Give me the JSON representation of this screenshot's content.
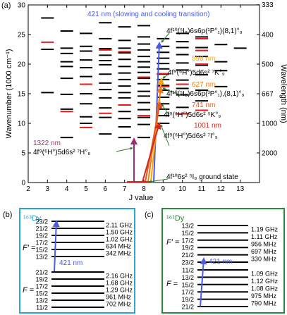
{
  "colors": {
    "axis": "#000000",
    "level": "#000000",
    "level_red": "#e8191a",
    "c421": "#4b5be8",
    "c598": "#f5a800",
    "c627": "#ee7d12",
    "c741": "#e8541d",
    "c1001": "#d42a24",
    "c1322": "#9b2f6e",
    "c_green": "#2b7a2d",
    "box_b": "#29a6d6",
    "box_c": "#2b8a3a"
  },
  "panel_a": {
    "label": "(a)",
    "xlabel": "J value",
    "ylabel_left": "Wavenumber (1000 cm⁻¹)",
    "ylabel_right": "Wavelength (nm)",
    "xticks": [
      "2",
      "3",
      "4",
      "5",
      "6",
      "7",
      "8",
      "9",
      "10",
      "11",
      "12",
      "13"
    ],
    "yticks": [
      "0",
      "5",
      "10",
      "15",
      "20",
      "25",
      "30"
    ],
    "right_ticks": [
      "333",
      "400",
      "500",
      "667",
      "1000",
      "2000"
    ],
    "labels": {
      "t421": "421 nm (slowing and cooling transition)",
      "t598": "598 nm",
      "t627": "627 nm",
      "t741": "741 nm",
      "t1001": "1001 nm",
      "t1322": "1322 nm",
      "cfg_421": "4f¹⁰(⁵I₈)6s6p(¹P°₁)(8,1)°₉",
      "cfg_598": "4f⁹(⁶H°)5d6s² ⁷K°₉",
      "cfg_627": "4f¹⁰(⁵I₈)6s6p(³P°₁),(8,1)°₉",
      "cfg_741": "4f⁹(⁶H°)5d6s² ⁵K°₉",
      "cfg_1001": "4f⁹(⁶H°)5d6s² ⁷I°₉",
      "cfg_1322": "4f⁹(⁶H°)5d6s² ⁷H°₈",
      "cfg_ground": "4f¹⁰6s² ⁵I₈ ground state"
    }
  },
  "panel_b": {
    "label": "(b)",
    "isotope": "¹⁶³Dy",
    "fprime_label": "F′ =",
    "f_label": "F =",
    "transition": "421 nm",
    "upper_F": [
      "23/2",
      "21/2",
      "19/2",
      "17/2",
      "15/2",
      "13/2"
    ],
    "upper_gaps": [
      "2.11 GHz",
      "1.50 GHz",
      "1.02 GHz",
      "634 MHz",
      "342 MHz"
    ],
    "lower_F": [
      "21/2",
      "19/2",
      "17/2",
      "15/2",
      "13/2",
      "11/2"
    ],
    "lower_gaps": [
      "2.16 GHz",
      "1.68 GHz",
      "1.29 GHz",
      "961 MHz",
      "702 MHz"
    ]
  },
  "panel_c": {
    "label": "(c)",
    "isotope": "¹⁶¹Dy",
    "fprime_label": "F′ =",
    "f_label": "F =",
    "transition": "421 nm",
    "upper_F": [
      "13/2",
      "15/2",
      "17/2",
      "19/2",
      "21/2",
      "23/2"
    ],
    "upper_gaps": [
      "1.19 GHz",
      "1.11 GHz",
      "956 MHz",
      "697 MHz",
      "330 MHz"
    ],
    "lower_F": [
      "11/2",
      "13/2",
      "15/2",
      "17/2",
      "19/2",
      "21/2"
    ],
    "lower_gaps": [
      "1.09 GHz",
      "1.12 GHz",
      "1.08 GHz",
      "975 MHz",
      "790 MHz"
    ]
  },
  "chart_data": {
    "type": "scatter",
    "description_units": "x: J value, y: wavenumber (1000 cm^-1)",
    "xlim": [
      2,
      14
    ],
    "ylim": [
      0,
      30
    ],
    "black_levels": [
      [
        3,
        27.8
      ],
      [
        3,
        15.2
      ],
      [
        3,
        22.5
      ],
      [
        4,
        25.6
      ],
      [
        4,
        22.7
      ],
      [
        4,
        21.8
      ],
      [
        4,
        20.4
      ],
      [
        4,
        19.6
      ],
      [
        4,
        17.6
      ],
      [
        4,
        14.9
      ],
      [
        4,
        12.4
      ],
      [
        4,
        7.6
      ],
      [
        5,
        25.2
      ],
      [
        5,
        23.0
      ],
      [
        5,
        22.2
      ],
      [
        5,
        20.7
      ],
      [
        5,
        19.4
      ],
      [
        5,
        17.9
      ],
      [
        5,
        16.6
      ],
      [
        5,
        15.0
      ],
      [
        5,
        13.3
      ],
      [
        5,
        11.1
      ],
      [
        5,
        10.0
      ],
      [
        6,
        27.0
      ],
      [
        6,
        24.3
      ],
      [
        6,
        22.6
      ],
      [
        6,
        21.5
      ],
      [
        6,
        20.6
      ],
      [
        6,
        19.9
      ],
      [
        6,
        18.3
      ],
      [
        6,
        16.8
      ],
      [
        6,
        15.7
      ],
      [
        6,
        14.3
      ],
      [
        6,
        12.6
      ],
      [
        6,
        11.0
      ],
      [
        6,
        8.2
      ],
      [
        7,
        26.3
      ],
      [
        7,
        24.0
      ],
      [
        7,
        22.7
      ],
      [
        7,
        21.9
      ],
      [
        7,
        20.8
      ],
      [
        7,
        19.6
      ],
      [
        7,
        18.5
      ],
      [
        7,
        17.4
      ],
      [
        7,
        16.3
      ],
      [
        7,
        15.2
      ],
      [
        7,
        14.3
      ],
      [
        7,
        13.1
      ],
      [
        7,
        12.0
      ],
      [
        7,
        10.8
      ],
      [
        7,
        9.4
      ],
      [
        7,
        7.6
      ],
      [
        8,
        26.5
      ],
      [
        8,
        24.6
      ],
      [
        8,
        23.4
      ],
      [
        8,
        22.4
      ],
      [
        8,
        21.3
      ],
      [
        8,
        20.4
      ],
      [
        8,
        19.5
      ],
      [
        8,
        18.6
      ],
      [
        8,
        17.6
      ],
      [
        8,
        16.7
      ],
      [
        8,
        15.4
      ],
      [
        8,
        14.6
      ],
      [
        8,
        13.5
      ],
      [
        8,
        12.3
      ],
      [
        8,
        11.0
      ],
      [
        8,
        9.8
      ],
      [
        8,
        7.6
      ],
      [
        9,
        24.3
      ],
      [
        9,
        23.0
      ],
      [
        9,
        22.0
      ],
      [
        9,
        21.0
      ],
      [
        9,
        20.1
      ],
      [
        9,
        19.2
      ],
      [
        9,
        18.3
      ],
      [
        9,
        17.4
      ],
      [
        9,
        16.4
      ],
      [
        9,
        15.6
      ],
      [
        9,
        14.4
      ],
      [
        9,
        13.3
      ],
      [
        9,
        12.4
      ],
      [
        9,
        11.3
      ],
      [
        9,
        10.0
      ],
      [
        10,
        25.2
      ],
      [
        10,
        23.8
      ],
      [
        10,
        22.8
      ],
      [
        10,
        21.6
      ],
      [
        10,
        20.2
      ],
      [
        10,
        19.0
      ],
      [
        10,
        17.3
      ],
      [
        10,
        15.9
      ],
      [
        10,
        14.8
      ],
      [
        10,
        12.7
      ],
      [
        11,
        24.6
      ],
      [
        11,
        22.8
      ],
      [
        11,
        21.3
      ],
      [
        11,
        19.8
      ],
      [
        11,
        18.2
      ],
      [
        11,
        15.6
      ],
      [
        11,
        13.8
      ],
      [
        12,
        23.3
      ],
      [
        12,
        20.4
      ],
      [
        12,
        18.9
      ],
      [
        12,
        16.2
      ],
      [
        13,
        22.7
      ]
    ],
    "red_levels": [
      [
        3,
        23.7
      ],
      [
        4,
        12.0
      ],
      [
        5,
        16.6
      ],
      [
        5,
        9.3
      ],
      [
        6,
        22.4
      ],
      [
        6,
        11.7
      ],
      [
        7,
        22.1
      ],
      [
        7,
        13.1
      ],
      [
        8,
        17.8
      ],
      [
        8,
        11.3
      ],
      [
        9,
        18.4
      ],
      [
        9,
        16.2
      ],
      [
        10,
        16.6
      ],
      [
        10,
        11.6
      ],
      [
        11,
        24.3
      ],
      [
        11,
        22.3
      ],
      [
        11,
        20.0
      ],
      [
        11,
        12.2
      ]
    ],
    "transitions": [
      {
        "name": "421 nm",
        "from": [
          8,
          0
        ],
        "to": [
          9,
          23.7
        ],
        "color": "c421"
      },
      {
        "name": "598 nm",
        "from": [
          8,
          0
        ],
        "to": [
          9,
          17.5
        ],
        "color": "c598"
      },
      {
        "name": "627 nm",
        "from": [
          8,
          0
        ],
        "to": [
          9,
          15.9
        ],
        "color": "c627"
      },
      {
        "name": "741 nm",
        "from": [
          8,
          0
        ],
        "to": [
          9,
          13.5
        ],
        "color": "c741"
      },
      {
        "name": "1001 nm",
        "from": [
          8,
          0
        ],
        "to": [
          9,
          10.0
        ],
        "color": "c1001"
      },
      {
        "name": "1322 nm",
        "from": [
          8,
          0
        ],
        "to": [
          7.6,
          7.6
        ],
        "color": "c1322"
      }
    ]
  }
}
